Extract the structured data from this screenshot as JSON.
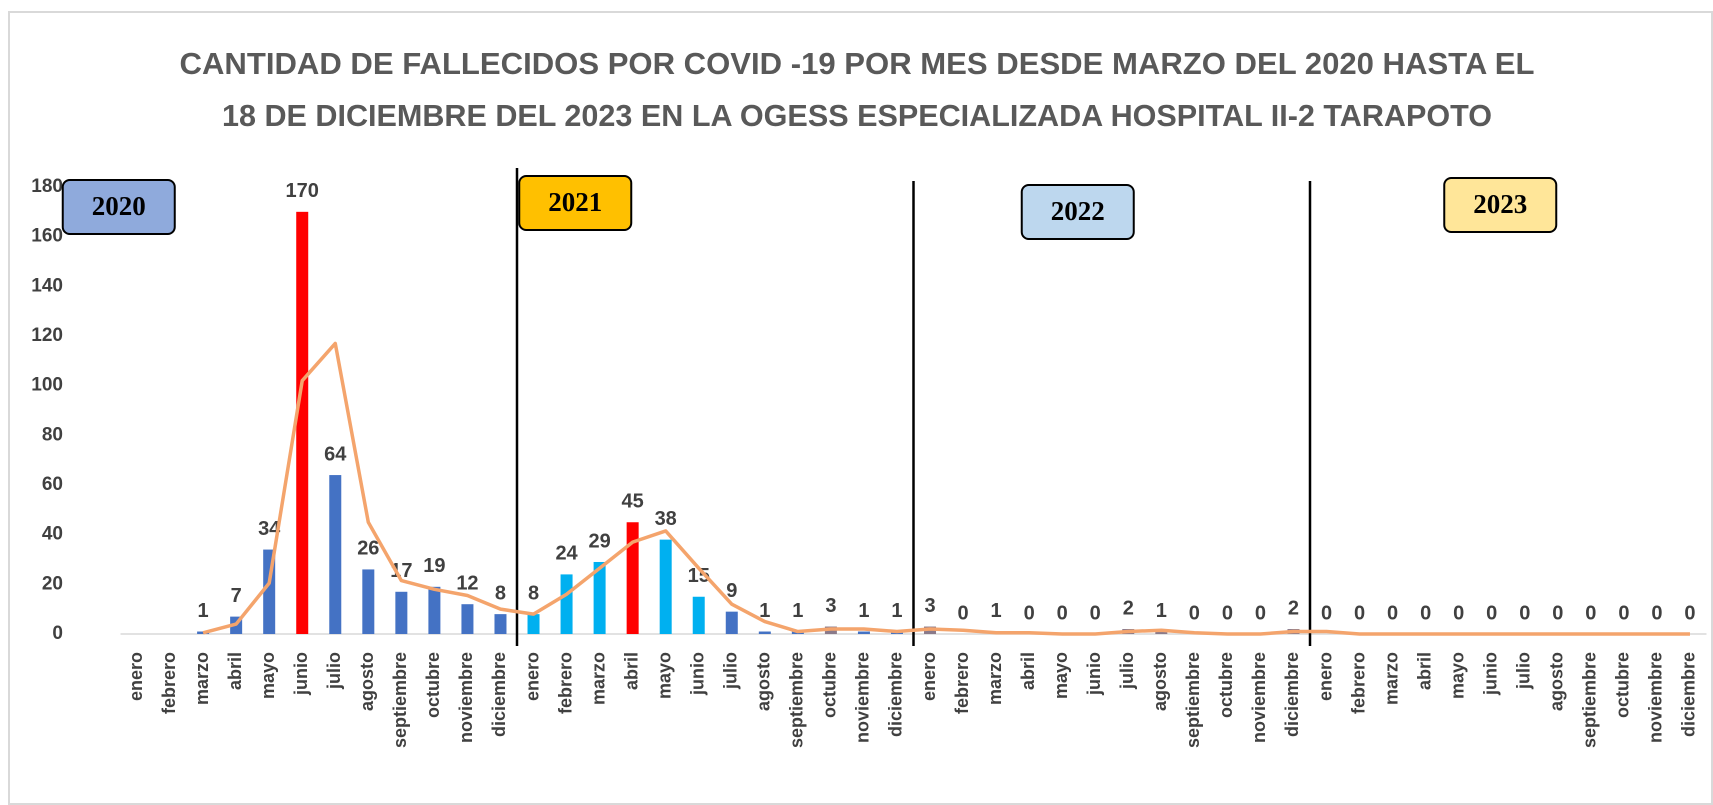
{
  "chart_data": {
    "type": "bar",
    "title": [
      "CANTIDAD DE FALLECIDOS POR COVID -19  POR MES  DESDE MARZO DEL 2020 HASTA EL",
      "18 DE DICIEMBRE  DEL 2023 EN LA OGESS ESPECIALIZADA HOSPITAL II-2 TARAPOTO"
    ],
    "categories": [
      "enero",
      "febrero",
      "marzo",
      "abril",
      "mayo",
      "junio",
      "julio",
      "agosto",
      "septiembre",
      "octubre",
      "noviembre",
      "diciembre",
      "enero",
      "febrero",
      "marzo",
      "abril",
      "mayo",
      "junio",
      "julio",
      "agosto",
      "septiembre",
      "octubre",
      "noviembre",
      "diciembre",
      "enero",
      "febrero",
      "marzo",
      "abril",
      "mayo",
      "junio",
      "julio",
      "agosto",
      "septiembre",
      "octubre",
      "noviembre",
      "diciembre",
      "enero",
      "febrero",
      "marzo",
      "abril",
      "mayo",
      "junio",
      "julio",
      "agosto",
      "septiembre",
      "octubre",
      "noviembre",
      "diciembre"
    ],
    "series": [
      {
        "type": "bar",
        "values": [
          null,
          null,
          1,
          7,
          34,
          170,
          64,
          26,
          17,
          19,
          12,
          8,
          8,
          24,
          29,
          45,
          38,
          15,
          9,
          1,
          1,
          3,
          1,
          1,
          3,
          0,
          1,
          0,
          0,
          0,
          2,
          1,
          0,
          0,
          0,
          2,
          0,
          0,
          0,
          0,
          0,
          0,
          0,
          0,
          0,
          0,
          0,
          0
        ],
        "colors": [
          "#4472c4",
          "#4472c4",
          "#4472c4",
          "#4472c4",
          "#4472c4",
          "#ff0000",
          "#4472c4",
          "#4472c4",
          "#4472c4",
          "#4472c4",
          "#4472c4",
          "#4472c4",
          "#00b0f0",
          "#00b0f0",
          "#00b0f0",
          "#ff0000",
          "#00b0f0",
          "#00b0f0",
          "#4472c4",
          "#4472c4",
          "#4472c4",
          "#8a7a8a",
          "#4472c4",
          "#4472c4",
          "#8a7a8a",
          "#8a7a8a",
          "#8a7a8a",
          "#8a7a8a",
          "#8a7a8a",
          "#8a7a8a",
          "#8a7a8a",
          "#8a7a8a",
          "#8a7a8a",
          "#8a7a8a",
          "#8a7a8a",
          "#8a7a8a",
          "#8a7a8a",
          "#8a7a8a",
          "#8a7a8a",
          "#8a7a8a",
          "#8a7a8a",
          "#8a7a8a",
          "#8a7a8a",
          "#8a7a8a",
          "#8a7a8a",
          "#8a7a8a",
          "#8a7a8a",
          "#8a7a8a"
        ]
      },
      {
        "type": "line",
        "color": "#f4a46c",
        "values": [
          null,
          null,
          0.5,
          4,
          20.5,
          102,
          117,
          45,
          21.5,
          18,
          15.5,
          10,
          8,
          16,
          26.5,
          37,
          41.5,
          26.5,
          12,
          5,
          1,
          2,
          2,
          1,
          2,
          1.5,
          0.5,
          0.5,
          0,
          0,
          1,
          1.5,
          0.5,
          0,
          0,
          1,
          1,
          0,
          0,
          0,
          0,
          0,
          0,
          0,
          0,
          0,
          0,
          0
        ]
      }
    ],
    "ylim": [
      0,
      180
    ],
    "yticks": [
      0,
      20,
      40,
      60,
      80,
      100,
      120,
      140,
      160,
      180
    ],
    "grid": false,
    "year_labels": [
      {
        "text": "2020",
        "color": "#8faadc"
      },
      {
        "text": "2021",
        "color": "#ffc000"
      },
      {
        "text": "2022",
        "color": "#bdd7ee"
      },
      {
        "text": "2023",
        "color": "#ffe699"
      }
    ]
  }
}
